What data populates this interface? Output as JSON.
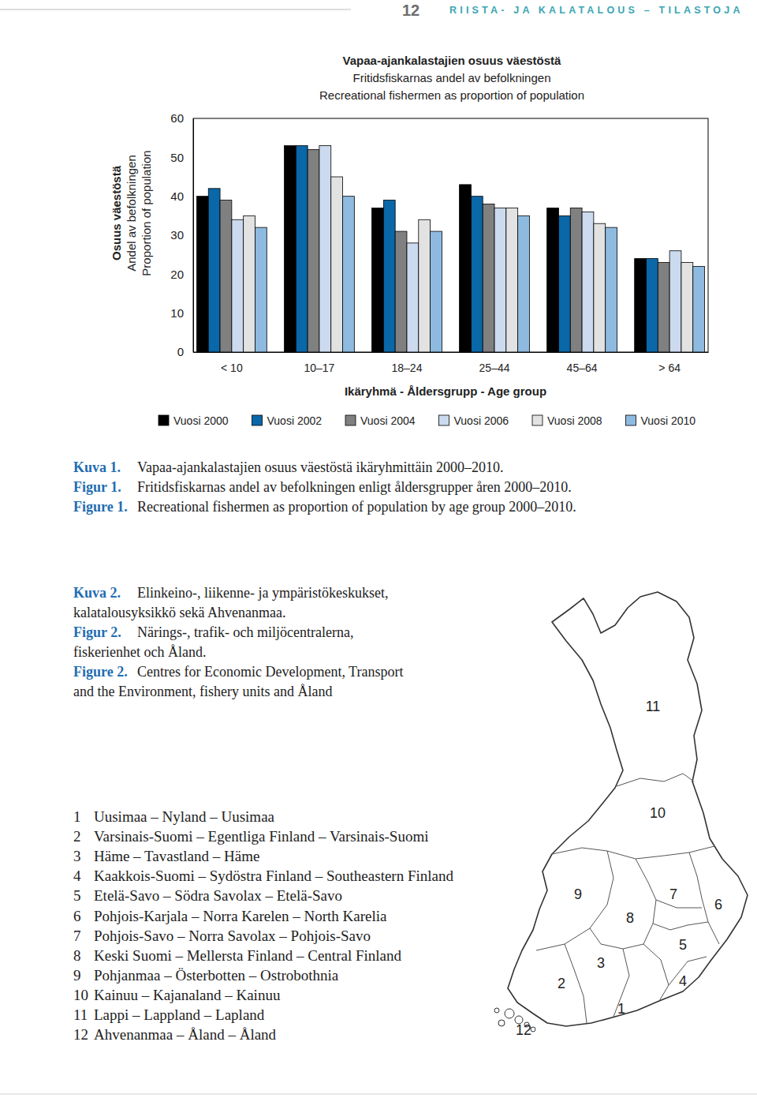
{
  "header": {
    "page_number": "12",
    "running_title": "RIISTA- JA KALATALOUS – TILASTOJA"
  },
  "chart_data": {
    "type": "bar",
    "title": "Vapaa-ajankalastajien osuus väestöstä",
    "subtitle": [
      "Fritidsfiskarnas andel av befolkningen",
      "Recreational fishermen as proportion of population"
    ],
    "y_label": [
      "Osuus väestöstä",
      "Andel av befolkningen",
      "Proportion of population"
    ],
    "x_label": "Ikäryhmä - Åldersgrupp - Age group",
    "categories": [
      "< 10",
      "10–17",
      "18–24",
      "25–44",
      "45–64",
      "> 64"
    ],
    "series": [
      {
        "name": "Vuosi 2000",
        "color": "#000000",
        "values": [
          40,
          53,
          37,
          43,
          37,
          24
        ]
      },
      {
        "name": "Vuosi 2002",
        "color": "#0a67a8",
        "values": [
          42,
          53,
          39,
          40,
          35,
          24
        ]
      },
      {
        "name": "Vuosi 2004",
        "color": "#808080",
        "values": [
          39,
          52,
          31,
          38,
          37,
          23
        ]
      },
      {
        "name": "Vuosi 2006",
        "color": "#cbdaee",
        "values": [
          34,
          53,
          28,
          37,
          36,
          26
        ]
      },
      {
        "name": "Vuosi 2008",
        "color": "#e2e2e2",
        "values": [
          35,
          45,
          34,
          37,
          33,
          23
        ]
      },
      {
        "name": "Vuosi 2010",
        "color": "#8ebadf",
        "values": [
          32,
          40,
          31,
          35,
          32,
          22
        ]
      }
    ],
    "ylim": [
      0,
      60
    ],
    "yticks": [
      0,
      10,
      20,
      30,
      40,
      50,
      60
    ],
    "grid": false,
    "legend": "bottom"
  },
  "captions": [
    {
      "label": "Kuva 1.",
      "lines": [
        "Vapaa-ajankalastajien osuus väestöstä ikäryhmittäin 2000–2010."
      ]
    },
    {
      "label": "Figur 1.",
      "lines": [
        "Fritidsfiskarnas andel av befolkningen enligt åldersgrupper åren 2000–2010."
      ]
    },
    {
      "label": "Figure 1.",
      "lines": [
        "Recreational fishermen as proportion of population by age group 2000–2010."
      ]
    },
    {
      "label": "Kuva 2.",
      "lines": [
        "Elinkeino-, liikenne- ja ympäristökeskukset,",
        "kalatalousyksikkö sekä Ahvenanmaa."
      ]
    },
    {
      "label": "Figur 2.",
      "lines": [
        "Närings-, trafik- och miljöcentralerna,",
        "fiskerienhet och Åland."
      ]
    },
    {
      "label": "Figure 2.",
      "lines": [
        "Centres for Economic Development, Transport",
        "and the Environment, fishery units and Åland"
      ]
    }
  ],
  "regions": [
    {
      "number": "1",
      "name": "Uusimaa – Nyland – Uusimaa"
    },
    {
      "number": "2",
      "name": "Varsinais-Suomi – Egentliga Finland – Varsinais-Suomi"
    },
    {
      "number": "3",
      "name": "Häme – Tavastland – Häme"
    },
    {
      "number": "4",
      "name": "Kaakkois-Suomi – Sydöstra Finland – Southeastern Finland"
    },
    {
      "number": "5",
      "name": "Etelä-Savo – Södra Savolax – Etelä-Savo"
    },
    {
      "number": "6",
      "name": "Pohjois-Karjala – Norra Karelen – North Karelia"
    },
    {
      "number": "7",
      "name": "Pohjois-Savo – Norra Savolax – Pohjois-Savo"
    },
    {
      "number": "8",
      "name": "Keski Suomi – Mellersta Finland – Central Finland"
    },
    {
      "number": "9",
      "name": "Pohjanmaa – Österbotten – Ostrobothnia"
    },
    {
      "number": "10",
      "name": "Kainuu – Kajanaland – Kainuu"
    },
    {
      "number": "11",
      "name": "Lappi – Lappland – Lapland"
    },
    {
      "number": "12",
      "name": "Ahvenanmaa – Åland – Åland"
    }
  ],
  "map": {
    "labels": [
      "1",
      "2",
      "3",
      "4",
      "5",
      "6",
      "7",
      "8",
      "9",
      "10",
      "11",
      "12"
    ]
  }
}
